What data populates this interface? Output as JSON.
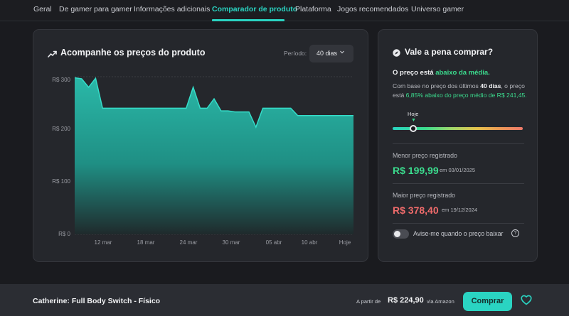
{
  "nav": {
    "tabs": [
      {
        "label": "Geral"
      },
      {
        "label": "De gamer para gamer"
      },
      {
        "label": "Informações adicionais"
      },
      {
        "label": "Comparador de produto"
      },
      {
        "label": "Plataforma"
      },
      {
        "label": "Jogos recomendados"
      },
      {
        "label": "Universo gamer"
      }
    ],
    "active_tab": "Comparador de produto"
  },
  "chart_card": {
    "title": "Acompanhe os preços do produto",
    "icon": "trend-up-icon",
    "period_label": "Período:",
    "period_value": "40 dias"
  },
  "chart_data": {
    "type": "area",
    "title": "Acompanhe os preços do produto",
    "ylim": [
      0,
      300
    ],
    "yticks": [
      "R$ 0",
      "R$ 100",
      "R$ 200",
      "R$ 300"
    ],
    "xticks": [
      "12 mar",
      "18 mar",
      "24 mar",
      "30 mar",
      "05 abr",
      "10 abr",
      "Hoje"
    ],
    "color": "#2ad4c2",
    "series": [
      {
        "day": [
          0,
          1,
          2,
          3,
          4,
          5,
          6,
          7,
          8,
          9,
          10,
          11,
          12,
          13,
          14,
          15,
          16,
          17,
          18,
          19,
          20,
          21,
          22,
          23,
          24,
          25,
          26,
          27,
          28,
          29,
          30,
          31,
          32,
          33,
          34,
          35,
          36,
          37,
          38,
          39,
          40
        ],
        "values": [
          298,
          296,
          280,
          297,
          240,
          240,
          240,
          240,
          240,
          240,
          240,
          240,
          240,
          240,
          240,
          240,
          240,
          280,
          240,
          240,
          258,
          235,
          235,
          233,
          233,
          233,
          204,
          240,
          240,
          240,
          240,
          240,
          226,
          226,
          226,
          226,
          226,
          226,
          226,
          226,
          226
        ]
      }
    ]
  },
  "side_card": {
    "title": "Vale a pena comprar?",
    "icon": "compass-icon",
    "headline_prefix": "O preço está",
    "headline_highlight": "abaixo da média.",
    "body_1": "Com base no preço dos últimos",
    "body_days": "40 dias",
    "body_2": ", o preço está",
    "body_pct": "6,85% abaixo do preço médio de R$ 241,45.",
    "gauge_label": "Hoje",
    "gauge_position": 0.16,
    "lowest_label": "Menor preço registrado",
    "lowest_price": "R$ 199,99",
    "lowest_date": "em 03/01/2025",
    "highest_label": "Maior preço registrado",
    "highest_price": "R$ 378,40",
    "highest_date": "em 19/12/2024",
    "alert_label": "Avise-me quando o preço baixar",
    "help_icon": "help-circle-icon"
  },
  "bottom_bar": {
    "product_name": "Catherine: Full Body Switch - Físico",
    "from_label": "A partir de",
    "price": "R$ 224,90",
    "via": "via Amazon",
    "buy_label": "Comprar",
    "heart_icon": "heart-icon"
  },
  "colors": {
    "accent": "#2ad4c2",
    "good": "#3bdc8e",
    "bad": "#ef6b6b",
    "background": "#1a1b1f",
    "card": "#25272c"
  }
}
